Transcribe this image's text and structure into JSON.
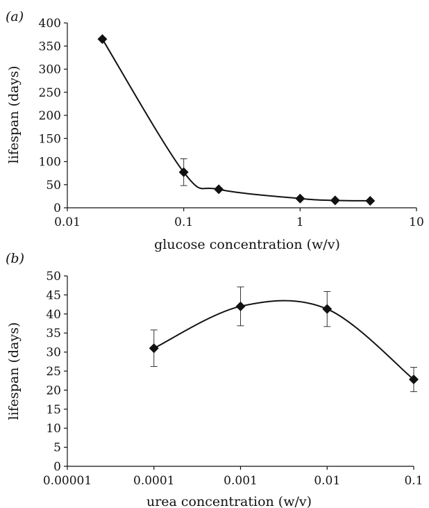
{
  "chart_data": [
    {
      "panel_label": "(a)",
      "type": "line",
      "xlabel": "glucose concentration (w/v)",
      "ylabel": "lifespan (days)",
      "x_scale": "log",
      "xlim": [
        0.01,
        10
      ],
      "ylim": [
        0,
        400
      ],
      "x_ticks": [
        0.01,
        0.1,
        1,
        10
      ],
      "x_tick_labels": [
        "0.01",
        "0.1",
        "1",
        "10"
      ],
      "y_ticks": [
        0,
        50,
        100,
        150,
        200,
        250,
        300,
        350,
        400
      ],
      "y_tick_labels": [
        "0",
        "50",
        "100",
        "150",
        "200",
        "250",
        "300",
        "350",
        "400"
      ],
      "grid": false,
      "legend": "none",
      "series": [
        {
          "color": "#111111",
          "marker": "diamond",
          "smooth": true,
          "x": [
            0.02,
            0.1,
            0.2,
            1,
            2,
            4
          ],
          "y": [
            365,
            77,
            40,
            20,
            16,
            15
          ],
          "error": [
            null,
            29,
            null,
            null,
            null,
            null
          ]
        }
      ]
    },
    {
      "panel_label": "(b)",
      "type": "line",
      "xlabel": "urea concentration (w/v)",
      "ylabel": "lifespan (days)",
      "x_scale": "log",
      "xlim": [
        1e-05,
        0.1
      ],
      "ylim": [
        0,
        50
      ],
      "x_ticks": [
        1e-05,
        0.0001,
        0.001,
        0.01,
        0.1
      ],
      "x_tick_labels": [
        "0.00001",
        "0.0001",
        "0.001",
        "0.01",
        "0.1"
      ],
      "y_ticks": [
        0,
        5,
        10,
        15,
        20,
        25,
        30,
        35,
        40,
        45,
        50
      ],
      "y_tick_labels": [
        "0",
        "5",
        "10",
        "15",
        "20",
        "25",
        "30",
        "35",
        "40",
        "45",
        "50"
      ],
      "grid": false,
      "legend": "none",
      "series": [
        {
          "color": "#111111",
          "marker": "diamond",
          "smooth": true,
          "x": [
            0.0001,
            0.001,
            0.01,
            0.1
          ],
          "y": [
            31,
            42,
            41.3,
            22.8
          ],
          "error": [
            4.8,
            5.1,
            4.6,
            3.2
          ]
        }
      ]
    }
  ]
}
